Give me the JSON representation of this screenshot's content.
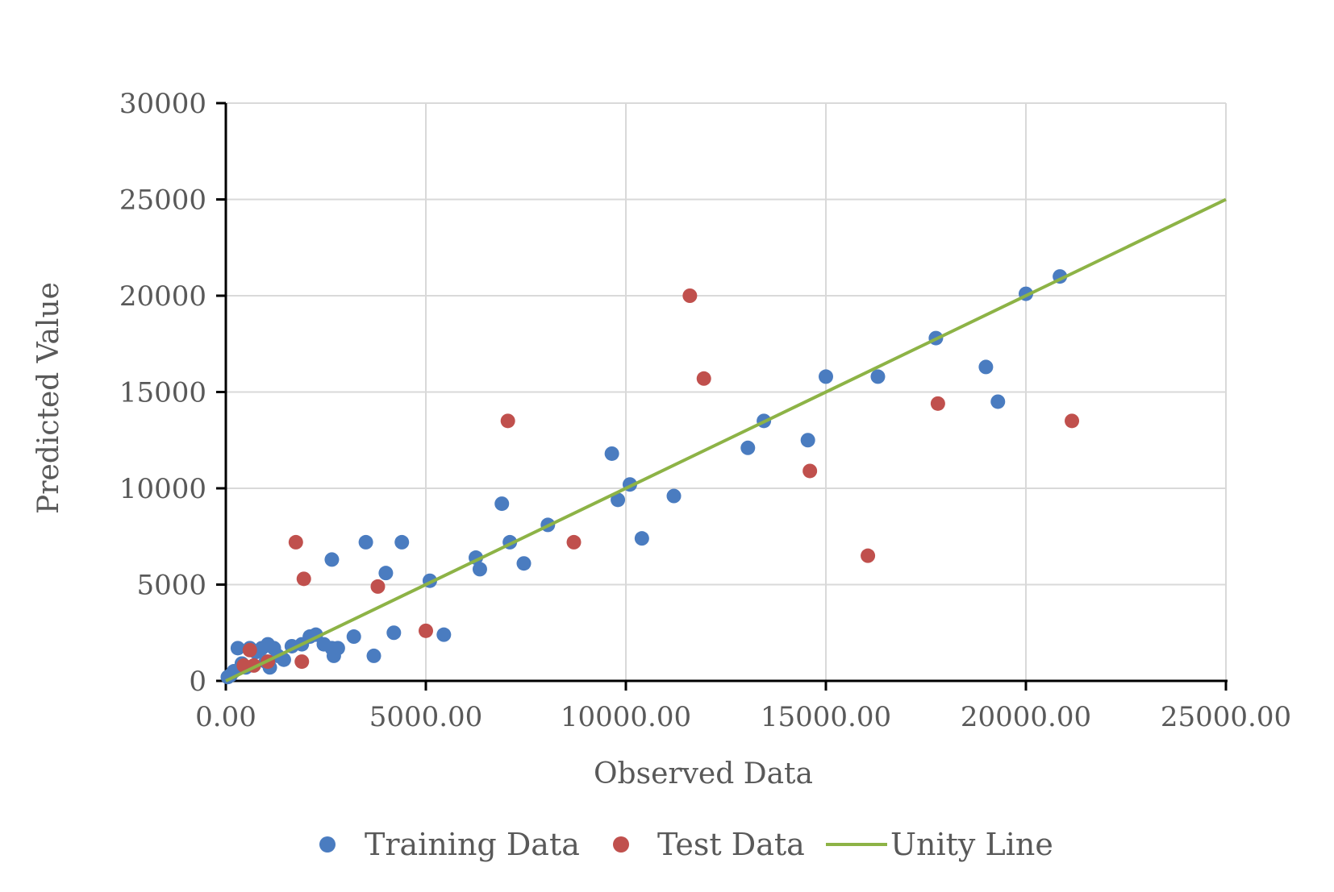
{
  "chart_data": {
    "type": "scatter",
    "title": "",
    "xlabel": "Observed Data",
    "ylabel": "Predicted Value",
    "xlim": [
      0,
      25000
    ],
    "ylim": [
      0,
      30000
    ],
    "xticks": [
      0,
      5000,
      10000,
      15000,
      20000,
      25000
    ],
    "xtick_labels": [
      "0.00",
      "5000.00",
      "10000.00",
      "15000.00",
      "20000.00",
      "25000.00"
    ],
    "yticks": [
      0,
      5000,
      10000,
      15000,
      20000,
      25000,
      30000
    ],
    "ytick_labels": [
      "0",
      "5000",
      "10000",
      "15000",
      "20000",
      "25000",
      "30000"
    ],
    "grid": true,
    "legend_position": "bottom",
    "series": [
      {
        "name": "Training Data",
        "kind": "scatter",
        "color": "#4a7cc0",
        "points": [
          [
            50,
            200
          ],
          [
            120,
            300
          ],
          [
            200,
            500
          ],
          [
            300,
            1700
          ],
          [
            400,
            900
          ],
          [
            500,
            700
          ],
          [
            600,
            1700
          ],
          [
            750,
            1500
          ],
          [
            900,
            1700
          ],
          [
            1000,
            1000
          ],
          [
            1050,
            1900
          ],
          [
            1100,
            700
          ],
          [
            1200,
            1700
          ],
          [
            1300,
            1300
          ],
          [
            1450,
            1100
          ],
          [
            1650,
            1800
          ],
          [
            1900,
            1900
          ],
          [
            2100,
            2300
          ],
          [
            2250,
            2400
          ],
          [
            2450,
            1900
          ],
          [
            2650,
            1700
          ],
          [
            2700,
            1300
          ],
          [
            2800,
            1700
          ],
          [
            2650,
            6300
          ],
          [
            3200,
            2300
          ],
          [
            3500,
            7200
          ],
          [
            3700,
            1300
          ],
          [
            4000,
            5600
          ],
          [
            4200,
            2500
          ],
          [
            4400,
            7200
          ],
          [
            5100,
            5200
          ],
          [
            5450,
            2400
          ],
          [
            6250,
            6400
          ],
          [
            6350,
            5800
          ],
          [
            6900,
            9200
          ],
          [
            7100,
            7200
          ],
          [
            7450,
            6100
          ],
          [
            8050,
            8100
          ],
          [
            9650,
            11800
          ],
          [
            9800,
            9400
          ],
          [
            10100,
            10200
          ],
          [
            10400,
            7400
          ],
          [
            11200,
            9600
          ],
          [
            13050,
            12100
          ],
          [
            13450,
            13500
          ],
          [
            14550,
            12500
          ],
          [
            15000,
            15800
          ],
          [
            16300,
            15800
          ],
          [
            17750,
            17800
          ],
          [
            19000,
            16300
          ],
          [
            19300,
            14500
          ],
          [
            20000,
            20100
          ],
          [
            20850,
            21000
          ]
        ]
      },
      {
        "name": "Test Data",
        "kind": "scatter",
        "color": "#c0504d",
        "points": [
          [
            450,
            800
          ],
          [
            600,
            1600
          ],
          [
            700,
            800
          ],
          [
            1050,
            1000
          ],
          [
            1750,
            7200
          ],
          [
            1900,
            1000
          ],
          [
            1950,
            5300
          ],
          [
            3800,
            4900
          ],
          [
            5000,
            2600
          ],
          [
            7050,
            13500
          ],
          [
            8700,
            7200
          ],
          [
            11600,
            20000
          ],
          [
            11950,
            15700
          ],
          [
            14600,
            10900
          ],
          [
            16050,
            6500
          ],
          [
            17800,
            14400
          ],
          [
            21150,
            13500
          ]
        ]
      },
      {
        "name": "Unity Line",
        "kind": "line",
        "color": "#8db346",
        "points": [
          [
            0,
            0
          ],
          [
            25000,
            25000
          ]
        ]
      }
    ]
  }
}
